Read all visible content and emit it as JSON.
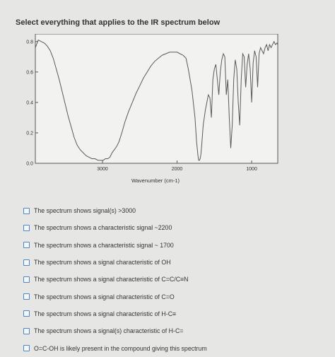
{
  "question": "Select everything that applies to the IR spectrum below",
  "chart_data": {
    "type": "line",
    "title": "",
    "xlabel": "Wavenumber (cm-1)",
    "ylabel": "",
    "xlim": [
      3900,
      650
    ],
    "ylim": [
      0,
      0.85
    ],
    "x_ticks": [
      3000,
      2000,
      1000
    ],
    "y_ticks": [
      0.0,
      0.2,
      0.4,
      0.6,
      0.8
    ],
    "x_tick_labels": [
      "3000",
      "2000",
      "1000"
    ],
    "y_tick_labels": [
      "0.0",
      "0.2",
      "0.4",
      "0.6",
      "0.8"
    ],
    "grid": false,
    "series": [
      {
        "x": [
          3900,
          3860,
          3820,
          3780,
          3740,
          3700,
          3660,
          3620,
          3580,
          3540,
          3500,
          3460,
          3420,
          3380,
          3340,
          3300,
          3260,
          3220,
          3180,
          3140,
          3100,
          3060,
          3020,
          2990,
          2960,
          2930,
          2900,
          2870,
          2840,
          2810,
          2780,
          2740,
          2700,
          2650,
          2600,
          2550,
          2500,
          2450,
          2400,
          2350,
          2300,
          2250,
          2200,
          2150,
          2100,
          2050,
          2000,
          1960,
          1920,
          1880,
          1850,
          1800,
          1760,
          1740,
          1720,
          1710,
          1700,
          1690,
          1680,
          1670,
          1650,
          1620,
          1600,
          1580,
          1560,
          1540,
          1520,
          1500,
          1480,
          1460,
          1440,
          1420,
          1400,
          1380,
          1360,
          1340,
          1320,
          1300,
          1280,
          1260,
          1240,
          1220,
          1200,
          1180,
          1160,
          1140,
          1120,
          1100,
          1080,
          1060,
          1040,
          1020,
          1000,
          980,
          960,
          940,
          920,
          900,
          880,
          860,
          840,
          820,
          800,
          780,
          760,
          740,
          720,
          700,
          680,
          660,
          650
        ],
        "y": [
          0.76,
          0.81,
          0.8,
          0.79,
          0.77,
          0.74,
          0.69,
          0.62,
          0.55,
          0.47,
          0.39,
          0.31,
          0.24,
          0.17,
          0.12,
          0.09,
          0.07,
          0.05,
          0.04,
          0.03,
          0.03,
          0.02,
          0.02,
          0.02,
          0.03,
          0.03,
          0.04,
          0.07,
          0.09,
          0.11,
          0.14,
          0.2,
          0.27,
          0.34,
          0.4,
          0.46,
          0.51,
          0.56,
          0.6,
          0.64,
          0.67,
          0.69,
          0.71,
          0.72,
          0.73,
          0.73,
          0.73,
          0.72,
          0.71,
          0.69,
          0.62,
          0.48,
          0.3,
          0.15,
          0.05,
          0.02,
          0.02,
          0.03,
          0.06,
          0.12,
          0.25,
          0.35,
          0.4,
          0.45,
          0.43,
          0.3,
          0.55,
          0.62,
          0.65,
          0.55,
          0.45,
          0.6,
          0.68,
          0.72,
          0.7,
          0.45,
          0.55,
          0.3,
          0.1,
          0.25,
          0.55,
          0.68,
          0.62,
          0.4,
          0.25,
          0.55,
          0.72,
          0.7,
          0.5,
          0.65,
          0.72,
          0.62,
          0.4,
          0.66,
          0.74,
          0.7,
          0.5,
          0.72,
          0.76,
          0.74,
          0.72,
          0.76,
          0.78,
          0.74,
          0.78,
          0.76,
          0.78,
          0.8,
          0.78,
          0.79,
          0.78
        ]
      }
    ]
  },
  "options": [
    "The spectrum shows signal(s) >3000",
    "The spectrum shows a characteristic signal ~2200",
    "The spectrum shows a characteristic signal ~ 1700",
    "The spectrum shows a signal characteristic of OH",
    "The spectrum shows a signal characteristic of C=C/C≡N",
    "The spectrum shows a signal characteristic of C=O",
    "The spectrum shows a signal characteristic of H-C≡",
    "The spectrum shows a signal(s) characteristic of H-C=",
    "O=C-OH is likely present in the compound giving this spectrum"
  ]
}
